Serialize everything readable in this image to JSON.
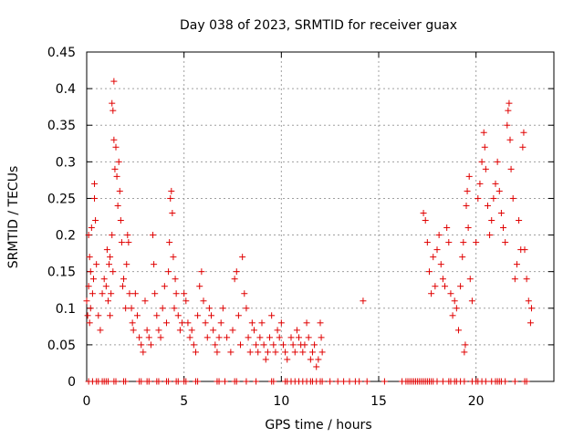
{
  "chart_data": {
    "type": "scatter",
    "title": "Day 038 of 2023, SRMTID for receiver guax",
    "xlabel": "GPS time / hours",
    "ylabel": "SRMTID / TECUs",
    "xlim": [
      0,
      24
    ],
    "ylim": [
      0,
      0.45
    ],
    "x_ticks": [
      0,
      5,
      10,
      15,
      20
    ],
    "x_tick_labels": [
      "0",
      "5",
      "10",
      "15",
      "20"
    ],
    "y_ticks": [
      0,
      0.05,
      0.1,
      0.15,
      0.2,
      0.25,
      0.3,
      0.35,
      0.4,
      0.45
    ],
    "y_tick_labels": [
      "0",
      "0.05",
      "0.1",
      "0.15",
      "0.2",
      "0.25",
      "0.3",
      "0.35",
      "0.4",
      "0.45"
    ],
    "grid": true,
    "marker": "+",
    "color": "#e00000",
    "series": [
      {
        "name": "SRMTID",
        "points": [
          [
            0.0,
            0.11
          ],
          [
            0.05,
            0.09
          ],
          [
            0.1,
            0.2
          ],
          [
            0.1,
            0.13
          ],
          [
            0.15,
            0.17
          ],
          [
            0.15,
            0.08
          ],
          [
            0.2,
            0.15
          ],
          [
            0.2,
            0.1
          ],
          [
            0.25,
            0.21
          ],
          [
            0.3,
            0.12
          ],
          [
            0.35,
            0.14
          ],
          [
            0.4,
            0.27
          ],
          [
            0.4,
            0.25
          ],
          [
            0.45,
            0.22
          ],
          [
            0.5,
            0.16
          ],
          [
            0.6,
            0.09
          ],
          [
            0.7,
            0.07
          ],
          [
            0.8,
            0.12
          ],
          [
            0.9,
            0.14
          ],
          [
            1.0,
            0.13
          ],
          [
            1.05,
            0.18
          ],
          [
            1.1,
            0.11
          ],
          [
            1.15,
            0.16
          ],
          [
            1.2,
            0.17
          ],
          [
            1.2,
            0.09
          ],
          [
            1.25,
            0.12
          ],
          [
            1.3,
            0.2
          ],
          [
            1.3,
            0.38
          ],
          [
            1.35,
            0.37
          ],
          [
            1.35,
            0.15
          ],
          [
            1.4,
            0.33
          ],
          [
            1.4,
            0.41
          ],
          [
            1.45,
            0.29
          ],
          [
            1.5,
            0.32
          ],
          [
            1.55,
            0.28
          ],
          [
            1.6,
            0.24
          ],
          [
            1.65,
            0.3
          ],
          [
            1.7,
            0.26
          ],
          [
            1.75,
            0.22
          ],
          [
            1.8,
            0.19
          ],
          [
            1.85,
            0.13
          ],
          [
            1.9,
            0.14
          ],
          [
            2.0,
            0.1
          ],
          [
            2.05,
            0.16
          ],
          [
            2.1,
            0.2
          ],
          [
            2.15,
            0.19
          ],
          [
            2.2,
            0.12
          ],
          [
            2.3,
            0.1
          ],
          [
            2.35,
            0.08
          ],
          [
            2.4,
            0.07
          ],
          [
            2.5,
            0.12
          ],
          [
            2.6,
            0.09
          ],
          [
            2.7,
            0.06
          ],
          [
            2.8,
            0.05
          ],
          [
            2.9,
            0.04
          ],
          [
            3.0,
            0.11
          ],
          [
            3.1,
            0.07
          ],
          [
            3.2,
            0.06
          ],
          [
            3.3,
            0.05
          ],
          [
            3.4,
            0.2
          ],
          [
            3.45,
            0.16
          ],
          [
            3.5,
            0.12
          ],
          [
            3.6,
            0.09
          ],
          [
            3.7,
            0.07
          ],
          [
            3.8,
            0.06
          ],
          [
            3.9,
            0.1
          ],
          [
            4.0,
            0.13
          ],
          [
            4.1,
            0.08
          ],
          [
            4.2,
            0.15
          ],
          [
            4.25,
            0.19
          ],
          [
            4.3,
            0.25
          ],
          [
            4.35,
            0.26
          ],
          [
            4.4,
            0.23
          ],
          [
            4.45,
            0.17
          ],
          [
            4.5,
            0.1
          ],
          [
            4.55,
            0.14
          ],
          [
            4.6,
            0.12
          ],
          [
            4.7,
            0.09
          ],
          [
            4.8,
            0.07
          ],
          [
            4.9,
            0.08
          ],
          [
            5.0,
            0.12
          ],
          [
            5.1,
            0.11
          ],
          [
            5.2,
            0.08
          ],
          [
            5.3,
            0.06
          ],
          [
            5.4,
            0.07
          ],
          [
            5.5,
            0.05
          ],
          [
            5.6,
            0.04
          ],
          [
            5.7,
            0.09
          ],
          [
            5.8,
            0.13
          ],
          [
            5.9,
            0.15
          ],
          [
            6.0,
            0.11
          ],
          [
            6.1,
            0.08
          ],
          [
            6.2,
            0.06
          ],
          [
            6.3,
            0.1
          ],
          [
            6.4,
            0.09
          ],
          [
            6.5,
            0.07
          ],
          [
            6.6,
            0.05
          ],
          [
            6.7,
            0.04
          ],
          [
            6.8,
            0.06
          ],
          [
            6.9,
            0.08
          ],
          [
            7.0,
            0.1
          ],
          [
            7.2,
            0.06
          ],
          [
            7.4,
            0.04
          ],
          [
            7.5,
            0.07
          ],
          [
            7.6,
            0.14
          ],
          [
            7.7,
            0.15
          ],
          [
            7.8,
            0.09
          ],
          [
            7.9,
            0.05
          ],
          [
            8.0,
            0.17
          ],
          [
            8.1,
            0.12
          ],
          [
            8.2,
            0.1
          ],
          [
            8.3,
            0.06
          ],
          [
            8.4,
            0.04
          ],
          [
            8.5,
            0.08
          ],
          [
            8.6,
            0.07
          ],
          [
            8.7,
            0.05
          ],
          [
            8.8,
            0.04
          ],
          [
            8.9,
            0.06
          ],
          [
            9.0,
            0.08
          ],
          [
            9.1,
            0.05
          ],
          [
            9.2,
            0.03
          ],
          [
            9.3,
            0.04
          ],
          [
            9.4,
            0.06
          ],
          [
            9.5,
            0.09
          ],
          [
            9.6,
            0.05
          ],
          [
            9.7,
            0.04
          ],
          [
            9.8,
            0.07
          ],
          [
            9.9,
            0.06
          ],
          [
            10.0,
            0.08
          ],
          [
            10.1,
            0.05
          ],
          [
            10.2,
            0.04
          ],
          [
            10.3,
            0.03
          ],
          [
            10.5,
            0.06
          ],
          [
            10.6,
            0.05
          ],
          [
            10.7,
            0.04
          ],
          [
            10.8,
            0.07
          ],
          [
            10.9,
            0.06
          ],
          [
            11.0,
            0.05
          ],
          [
            11.1,
            0.04
          ],
          [
            11.2,
            0.05
          ],
          [
            11.3,
            0.08
          ],
          [
            11.4,
            0.06
          ],
          [
            11.5,
            0.03
          ],
          [
            11.6,
            0.04
          ],
          [
            11.7,
            0.05
          ],
          [
            11.8,
            0.02
          ],
          [
            11.9,
            0.03
          ],
          [
            12.0,
            0.08
          ],
          [
            12.05,
            0.06
          ],
          [
            12.1,
            0.04
          ],
          [
            14.2,
            0.11
          ],
          [
            17.3,
            0.23
          ],
          [
            17.4,
            0.22
          ],
          [
            17.5,
            0.19
          ],
          [
            17.6,
            0.15
          ],
          [
            17.7,
            0.12
          ],
          [
            17.8,
            0.17
          ],
          [
            17.9,
            0.13
          ],
          [
            18.0,
            0.18
          ],
          [
            18.1,
            0.2
          ],
          [
            18.2,
            0.16
          ],
          [
            18.3,
            0.14
          ],
          [
            18.4,
            0.13
          ],
          [
            18.5,
            0.21
          ],
          [
            18.6,
            0.19
          ],
          [
            18.7,
            0.12
          ],
          [
            18.8,
            0.09
          ],
          [
            18.9,
            0.11
          ],
          [
            19.0,
            0.1
          ],
          [
            19.1,
            0.07
          ],
          [
            19.2,
            0.13
          ],
          [
            19.3,
            0.17
          ],
          [
            19.35,
            0.19
          ],
          [
            19.4,
            0.04
          ],
          [
            19.45,
            0.05
          ],
          [
            19.5,
            0.24
          ],
          [
            19.55,
            0.26
          ],
          [
            19.6,
            0.21
          ],
          [
            19.65,
            0.28
          ],
          [
            19.7,
            0.14
          ],
          [
            19.8,
            0.11
          ],
          [
            20.0,
            0.19
          ],
          [
            20.1,
            0.25
          ],
          [
            20.2,
            0.27
          ],
          [
            20.3,
            0.3
          ],
          [
            20.4,
            0.34
          ],
          [
            20.45,
            0.32
          ],
          [
            20.5,
            0.29
          ],
          [
            20.6,
            0.24
          ],
          [
            20.7,
            0.2
          ],
          [
            20.8,
            0.22
          ],
          [
            20.9,
            0.25
          ],
          [
            21.0,
            0.27
          ],
          [
            21.1,
            0.3
          ],
          [
            21.2,
            0.26
          ],
          [
            21.3,
            0.23
          ],
          [
            21.4,
            0.21
          ],
          [
            21.5,
            0.19
          ],
          [
            21.6,
            0.35
          ],
          [
            21.65,
            0.37
          ],
          [
            21.7,
            0.38
          ],
          [
            21.75,
            0.33
          ],
          [
            21.8,
            0.29
          ],
          [
            21.9,
            0.25
          ],
          [
            22.0,
            0.14
          ],
          [
            22.1,
            0.16
          ],
          [
            22.2,
            0.22
          ],
          [
            22.3,
            0.18
          ],
          [
            22.4,
            0.32
          ],
          [
            22.45,
            0.34
          ],
          [
            22.5,
            0.18
          ],
          [
            22.6,
            0.14
          ],
          [
            22.7,
            0.11
          ],
          [
            22.8,
            0.08
          ],
          [
            22.85,
            0.1
          ]
        ]
      }
    ],
    "baseline_x": [
      0.1,
      0.3,
      0.5,
      0.6,
      0.8,
      0.9,
      1.0,
      1.1,
      1.4,
      1.5,
      1.9,
      2.0,
      2.7,
      2.8,
      3.1,
      3.2,
      3.6,
      3.7,
      4.1,
      4.2,
      4.6,
      4.7,
      5.0,
      5.1,
      5.6,
      5.7,
      6.7,
      6.8,
      7.1,
      7.6,
      7.7,
      8.2,
      8.7,
      9.5,
      9.6,
      10.2,
      10.3,
      10.5,
      10.7,
      10.9,
      11.1,
      11.3,
      11.5,
      11.6,
      11.8,
      12.0,
      12.1,
      12.5,
      12.9,
      13.2,
      13.5,
      13.8,
      14.0,
      14.4,
      15.3,
      16.2,
      16.4,
      16.5,
      16.6,
      16.7,
      16.8,
      16.9,
      17.0,
      17.1,
      17.2,
      17.3,
      17.4,
      17.5,
      17.6,
      17.7,
      17.8,
      18.0,
      18.3,
      18.6,
      18.7,
      18.9,
      19.0,
      19.2,
      19.4,
      19.8,
      20.0,
      20.1,
      20.3,
      20.5,
      20.8,
      21.0,
      21.1,
      21.2,
      21.3,
      21.5,
      22.0,
      22.5,
      22.6
    ]
  }
}
